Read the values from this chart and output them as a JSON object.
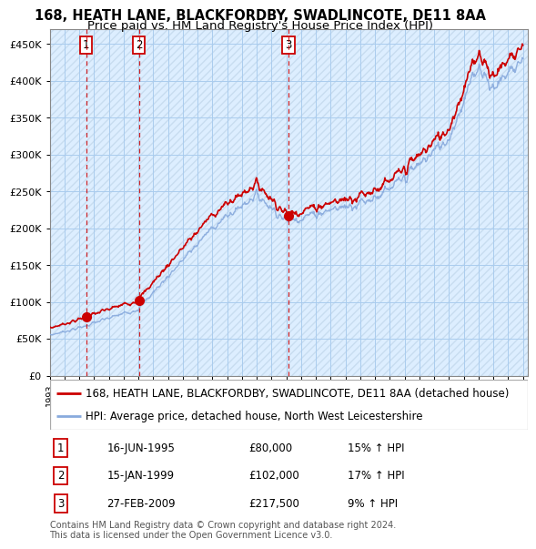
{
  "title": "168, HEATH LANE, BLACKFORDBY, SWADLINCOTE, DE11 8AA",
  "subtitle": "Price paid vs. HM Land Registry's House Price Index (HPI)",
  "ylabel_ticks": [
    "£0",
    "£50K",
    "£100K",
    "£150K",
    "£200K",
    "£250K",
    "£300K",
    "£350K",
    "£400K",
    "£450K"
  ],
  "ytick_values": [
    0,
    50000,
    100000,
    150000,
    200000,
    250000,
    300000,
    350000,
    400000,
    450000
  ],
  "ylim": [
    0,
    470000
  ],
  "xlim_start": 1993.0,
  "xlim_end": 2025.3,
  "sales": [
    {
      "date": 1995.46,
      "price": 80000,
      "label": "1"
    },
    {
      "date": 1999.04,
      "price": 102000,
      "label": "2"
    },
    {
      "date": 2009.15,
      "price": 217500,
      "label": "3"
    }
  ],
  "sale_color": "#cc0000",
  "hpi_color": "#88aadd",
  "vline_color": "#cc0000",
  "bg_color": "#ddeeff",
  "hatch_color": "#c8ddf0",
  "grid_color": "#aaccee",
  "legend_entries": [
    "168, HEATH LANE, BLACKFORDBY, SWADLINCOTE, DE11 8AA (detached house)",
    "HPI: Average price, detached house, North West Leicestershire"
  ],
  "table_rows": [
    {
      "num": "1",
      "date": "16-JUN-1995",
      "price": "£80,000",
      "hpi": "15% ↑ HPI"
    },
    {
      "num": "2",
      "date": "15-JAN-1999",
      "price": "£102,000",
      "hpi": "17% ↑ HPI"
    },
    {
      "num": "3",
      "date": "27-FEB-2009",
      "price": "£217,500",
      "hpi": "9% ↑ HPI"
    }
  ],
  "footnote": "Contains HM Land Registry data © Crown copyright and database right 2024.\nThis data is licensed under the Open Government Licence v3.0.",
  "title_fontsize": 10.5,
  "subtitle_fontsize": 9.5,
  "tick_fontsize": 8,
  "legend_fontsize": 8.5,
  "table_fontsize": 8.5
}
